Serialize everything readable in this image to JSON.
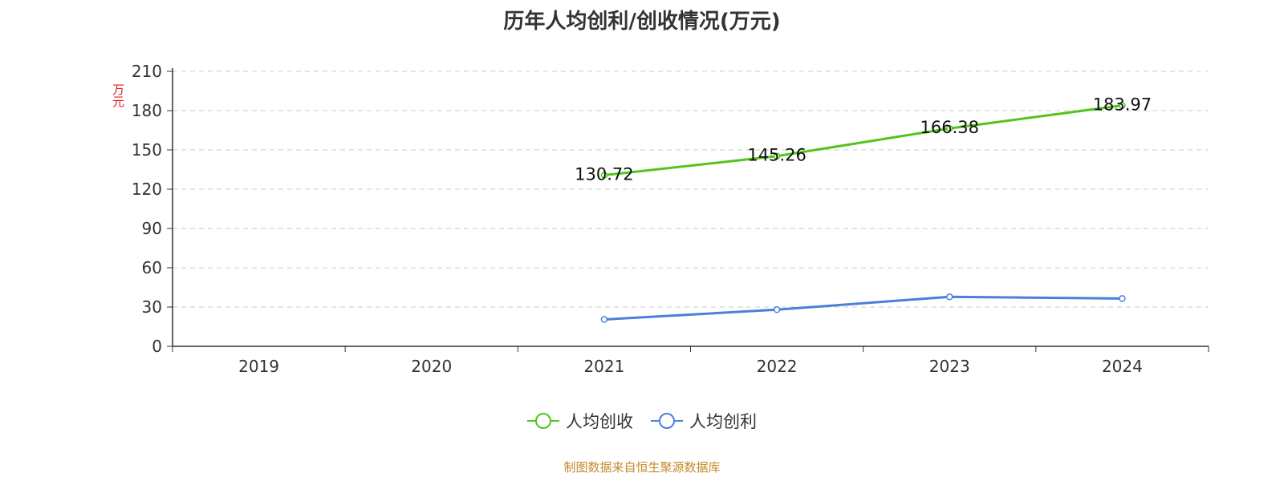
{
  "chart_data": {
    "type": "line",
    "title": "历年人均创利/创收情况(万元)",
    "ylabel": "万元",
    "categories": [
      "2019",
      "2020",
      "2021",
      "2022",
      "2023",
      "2024"
    ],
    "ylim": [
      0,
      210
    ],
    "yticks": [
      0,
      30,
      60,
      90,
      120,
      150,
      180,
      210
    ],
    "grid": true,
    "legend_position": "bottom-center",
    "series": [
      {
        "name": "人均创收",
        "color": "#52c41a",
        "values": [
          null,
          null,
          130.72,
          145.26,
          166.38,
          183.97
        ],
        "labels": [
          null,
          null,
          "130.72",
          "145.26",
          "166.38",
          "183.97"
        ]
      },
      {
        "name": "人均创利",
        "color": "#4a7fdb",
        "values": [
          null,
          null,
          20.5,
          28.0,
          37.8,
          36.5
        ],
        "labels": [
          null,
          null,
          null,
          null,
          null,
          null
        ]
      }
    ]
  },
  "source": "制图数据来自恒生聚源数据库"
}
